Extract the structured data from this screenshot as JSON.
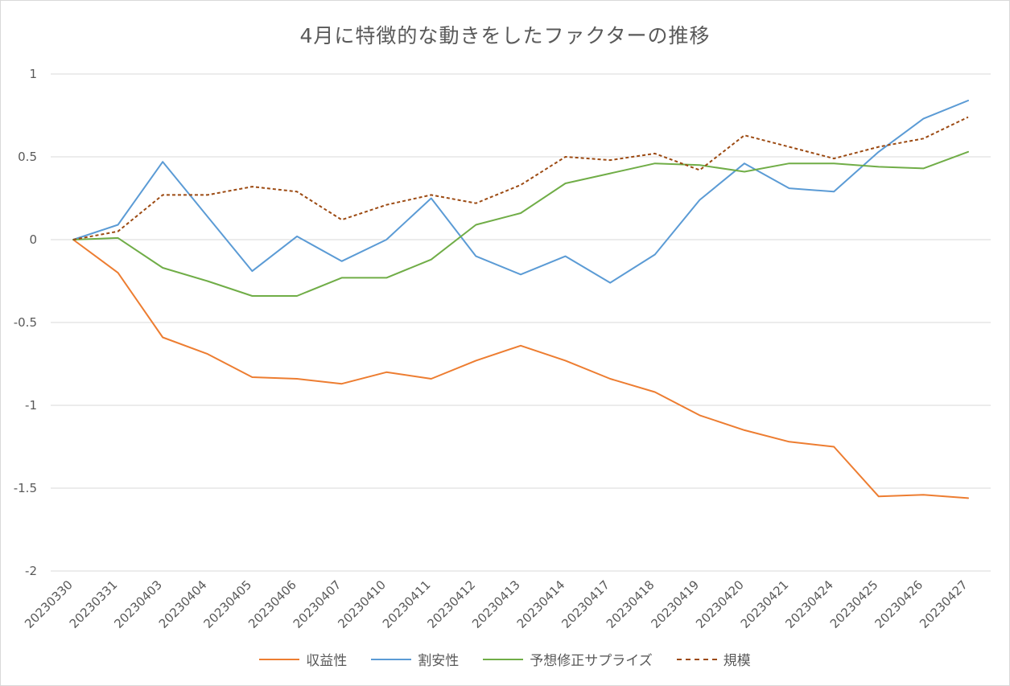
{
  "chart_data": {
    "type": "line",
    "title": "4月に特徴的な動きをしたファクターの推移",
    "xlabel": "",
    "ylabel": "",
    "ylim": [
      -2,
      1
    ],
    "yticks": [
      1,
      0.5,
      0,
      -0.5,
      -1,
      -1.5,
      -2
    ],
    "ytick_labels": [
      "1",
      "0.5",
      "0",
      "-0.5",
      "-1",
      "-1.5",
      "-2"
    ],
    "grid": true,
    "legend_position": "bottom",
    "categories": [
      "20230330",
      "20230331",
      "20230403",
      "20230404",
      "20230405",
      "20230406",
      "20230407",
      "20230410",
      "20230411",
      "20230412",
      "20230413",
      "20230414",
      "20230417",
      "20230418",
      "20230419",
      "20230420",
      "20230421",
      "20230424",
      "20230425",
      "20230426",
      "20230427"
    ],
    "series": [
      {
        "name": "収益性",
        "color": "#ed7d31",
        "dash": "solid",
        "values": [
          0,
          -0.2,
          -0.59,
          -0.69,
          -0.83,
          -0.84,
          -0.87,
          -0.8,
          -0.84,
          -0.73,
          -0.64,
          -0.73,
          -0.84,
          -0.92,
          -1.06,
          -1.15,
          -1.22,
          -1.25,
          -1.55,
          -1.54,
          -1.56
        ]
      },
      {
        "name": "割安性",
        "color": "#5b9bd5",
        "dash": "solid",
        "values": [
          0,
          0.09,
          0.47,
          0.14,
          -0.19,
          0.02,
          -0.13,
          0.0,
          0.25,
          -0.1,
          -0.21,
          -0.1,
          -0.26,
          -0.09,
          0.24,
          0.46,
          0.31,
          0.29,
          0.53,
          0.73,
          0.84
        ]
      },
      {
        "name": "予想修正サプライズ",
        "color": "#70ad47",
        "dash": "solid",
        "values": [
          0,
          0.01,
          -0.17,
          -0.25,
          -0.34,
          -0.34,
          -0.23,
          -0.23,
          -0.12,
          0.09,
          0.16,
          0.34,
          0.4,
          0.46,
          0.45,
          0.41,
          0.46,
          0.46,
          0.44,
          0.43,
          0.53
        ]
      },
      {
        "name": "規模",
        "color": "#9c4a12",
        "dash": "dashed",
        "values": [
          0,
          0.05,
          0.27,
          0.27,
          0.32,
          0.29,
          0.12,
          0.21,
          0.27,
          0.22,
          0.33,
          0.5,
          0.48,
          0.52,
          0.42,
          0.63,
          0.56,
          0.49,
          0.56,
          0.61,
          0.74
        ]
      }
    ]
  }
}
